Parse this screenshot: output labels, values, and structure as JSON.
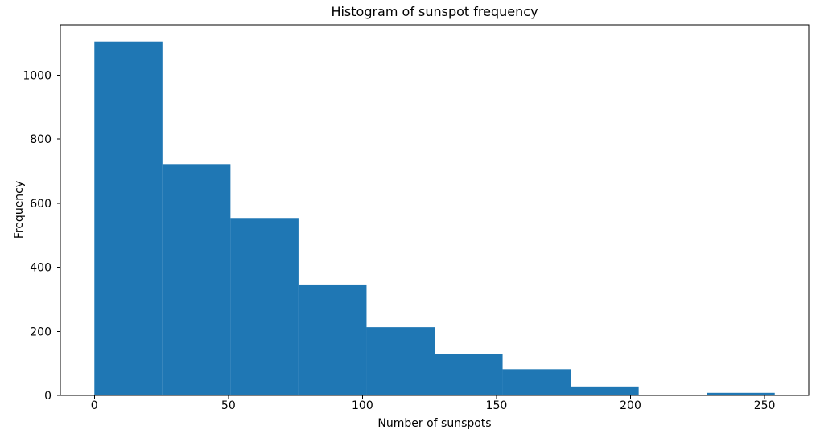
{
  "chart_data": {
    "type": "bar",
    "subtype": "histogram",
    "title": "Histogram of sunspot frequency",
    "xlabel": "Number of sunspots",
    "ylabel": "Frequency",
    "bin_edges": [
      0,
      25.38,
      50.76,
      76.14,
      101.52,
      126.9,
      152.28,
      177.66,
      203.04,
      228.42,
      253.8
    ],
    "values": [
      1105,
      722,
      554,
      344,
      213,
      130,
      82,
      28,
      2,
      8
    ],
    "xticks": [
      0,
      50,
      100,
      150,
      200,
      250
    ],
    "yticks": [
      0,
      200,
      400,
      600,
      800,
      1000
    ],
    "xlim": [
      -12.69,
      266.49
    ],
    "ylim": [
      0,
      1157
    ],
    "grid": false,
    "legend": false,
    "bar_color": "#1f77b4",
    "axis_color": "#000000",
    "background_color": "#ffffff"
  }
}
